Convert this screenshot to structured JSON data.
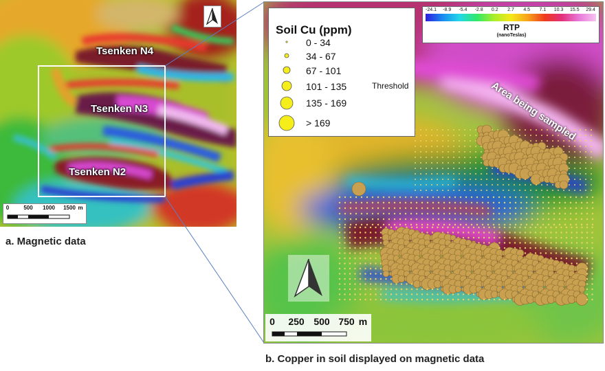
{
  "panel_a": {
    "caption": "a. Magnetic data",
    "labels": [
      "Tsenken N4",
      "Tsenken N3",
      "Tsenken N2"
    ],
    "scale_bar": {
      "ticks": [
        "0",
        "500",
        "1000",
        "1500"
      ],
      "unit": "m"
    },
    "north_arrow_icon": "north-arrow-icon"
  },
  "panel_b": {
    "caption": "b. Copper in soil displayed on magnetic data",
    "legend": {
      "title": "Soil Cu (ppm)",
      "classes": [
        "0 - 34",
        "34 - 67",
        "67 - 101",
        "101 - 135",
        "135 - 169",
        "> 169"
      ],
      "threshold_label": "Threshold",
      "symbol_color": "#f5ee1a"
    },
    "rtp": {
      "title": "RTP",
      "unit": "(nanoTeslas)",
      "ticks": [
        "-24.1",
        "-8.9",
        "-5.4",
        "-2.8",
        "0.2",
        "2.7",
        "4.5",
        "7.1",
        "10.3",
        "15.5",
        "29.4"
      ],
      "colors": [
        "#2e1de0",
        "#1a8cf0",
        "#23d8e8",
        "#2fe86a",
        "#a8ee2a",
        "#f5e81a",
        "#f7a21c",
        "#ef3a1e",
        "#e2327e",
        "#e879d8",
        "#f6c4f2"
      ]
    },
    "area_label": "Area being sampled",
    "scale_bar": {
      "ticks": [
        "0",
        "250",
        "500",
        "750"
      ],
      "unit": "m"
    },
    "north_arrow_icon": "north-arrow-icon",
    "sample_color": "#c8a050"
  }
}
